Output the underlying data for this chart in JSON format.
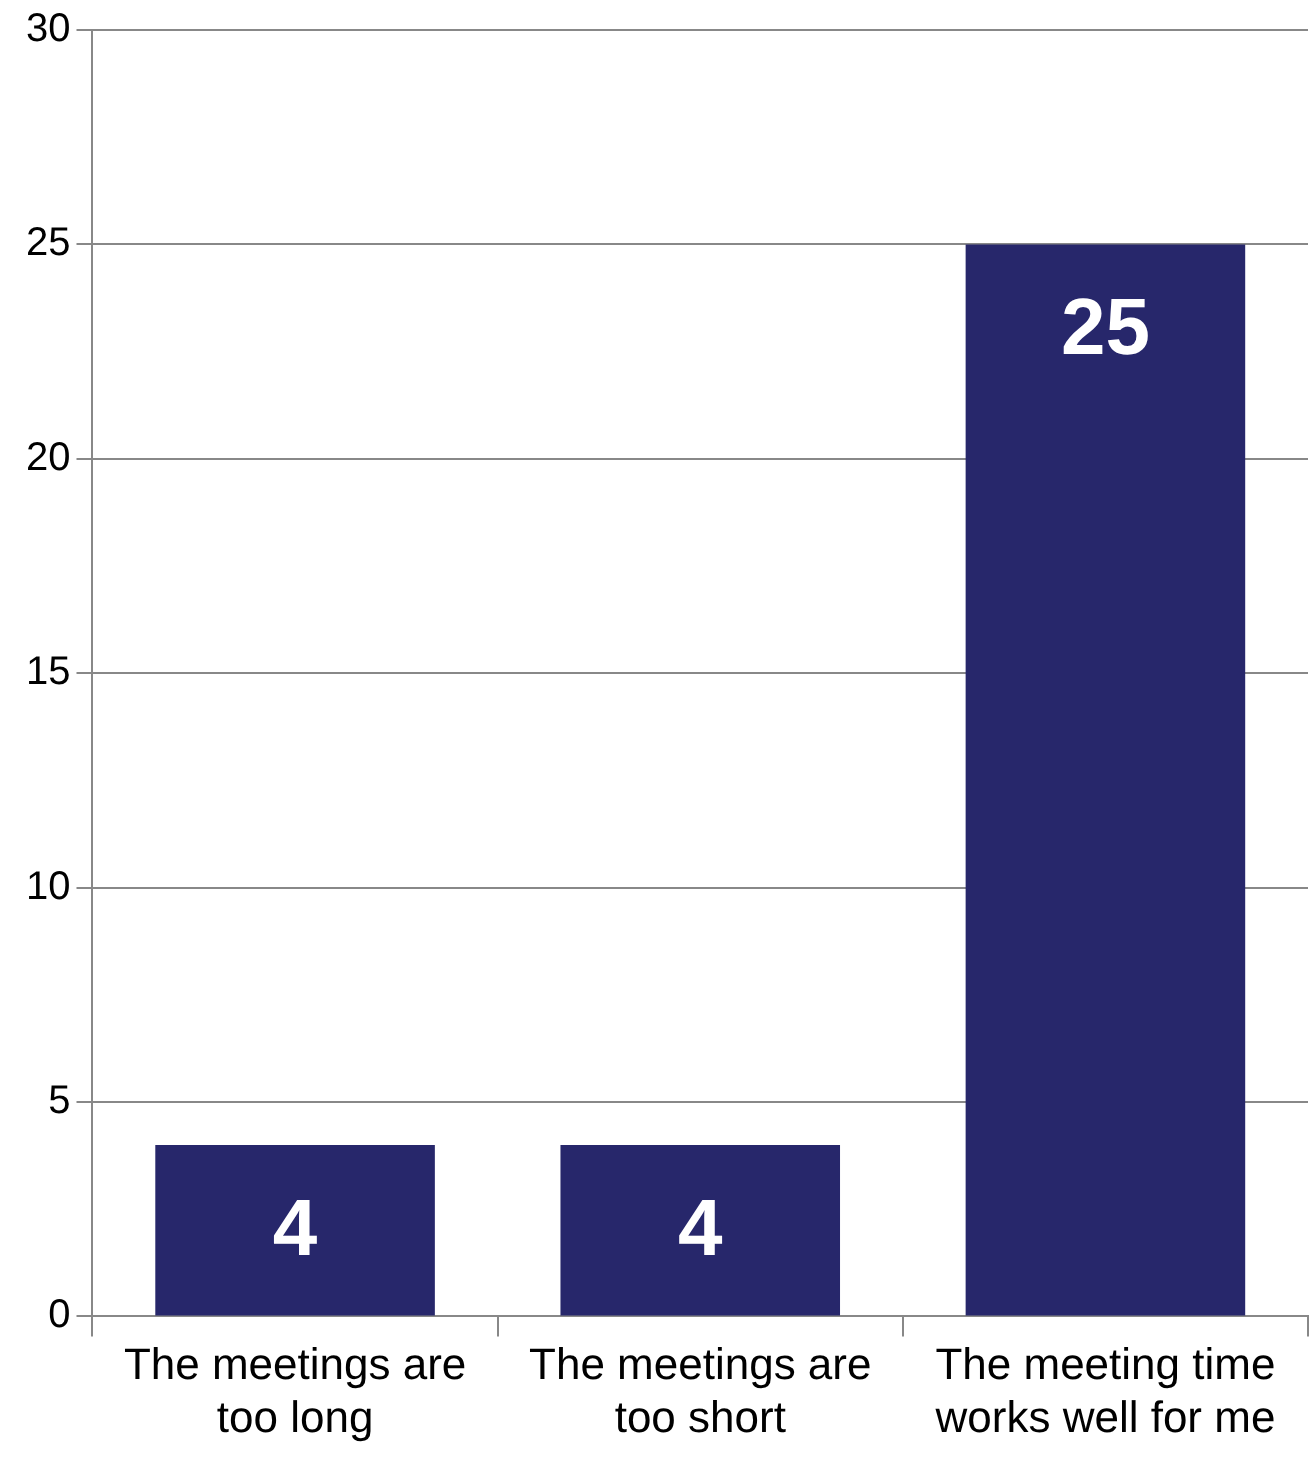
{
  "chart_data": {
    "type": "bar",
    "categories": [
      "The meetings are too long",
      "The meetings are too short",
      "The meeting time works well for me"
    ],
    "values": [
      4,
      4,
      25
    ],
    "color": "#27276b",
    "ylim": [
      0,
      30
    ],
    "yticks": [
      0,
      5,
      10,
      15,
      20,
      25,
      30
    ],
    "grid": "y",
    "data_labels": true
  }
}
